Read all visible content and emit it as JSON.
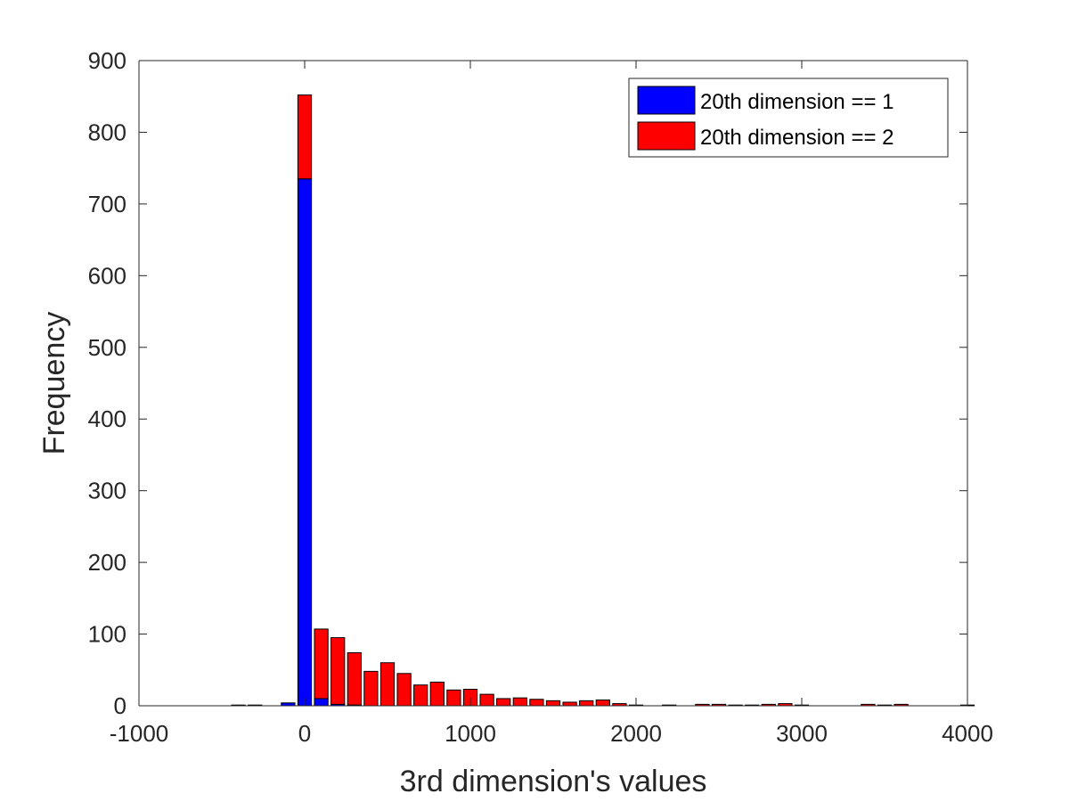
{
  "chart_data": {
    "type": "bar",
    "stacked": true,
    "title": "",
    "xlabel": "3rd dimension's values",
    "ylabel": "Frequency",
    "xlim": [
      -1000,
      4000
    ],
    "ylim": [
      0,
      900
    ],
    "xticks": [
      -1000,
      0,
      1000,
      2000,
      3000,
      4000
    ],
    "yticks": [
      0,
      100,
      200,
      300,
      400,
      500,
      600,
      700,
      800,
      900
    ],
    "xtick_labels": [
      "-1000",
      "0",
      "1000",
      "2000",
      "3000",
      "4000"
    ],
    "ytick_labels": [
      "0",
      "100",
      "200",
      "300",
      "400",
      "500",
      "600",
      "700",
      "800",
      "900"
    ],
    "bin_width": 100,
    "x": [
      -500,
      -400,
      -300,
      -200,
      -100,
      0,
      100,
      200,
      300,
      400,
      500,
      600,
      700,
      800,
      900,
      1000,
      1100,
      1200,
      1300,
      1400,
      1500,
      1600,
      1700,
      1800,
      1900,
      2000,
      2100,
      2200,
      2300,
      2400,
      2500,
      2600,
      2700,
      2800,
      2900,
      3000,
      3100,
      3200,
      3300,
      3400,
      3500,
      3600,
      3700,
      3800,
      3900,
      4000
    ],
    "legend_position": "top-right",
    "series": [
      {
        "name": "20th dimension == 1",
        "color": "#0000ff",
        "values": [
          0,
          1,
          1,
          0,
          4,
          735,
          10,
          2,
          1,
          0,
          0,
          0,
          0,
          0,
          0,
          0,
          0,
          0,
          0,
          0,
          0,
          0,
          0,
          0,
          0,
          0,
          0,
          0,
          0,
          0,
          0,
          0,
          0,
          0,
          0,
          0,
          0,
          0,
          0,
          0,
          0,
          0,
          0,
          0,
          0,
          0
        ]
      },
      {
        "name": "20th dimension == 2",
        "color": "#ff0000",
        "values": [
          0,
          0,
          0,
          0,
          0,
          117,
          97,
          93,
          73,
          48,
          60,
          45,
          29,
          33,
          22,
          23,
          16,
          10,
          11,
          9,
          7,
          5,
          7,
          8,
          3,
          1,
          0,
          1,
          0,
          2,
          2,
          1,
          1,
          2,
          3,
          1,
          0,
          0,
          0,
          2,
          1,
          2,
          0,
          0,
          0,
          1
        ]
      }
    ]
  }
}
